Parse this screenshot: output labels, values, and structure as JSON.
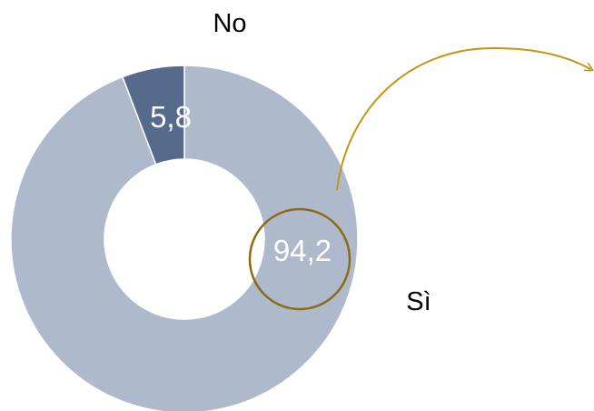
{
  "chart_data": {
    "type": "pie",
    "variant": "donut",
    "categories": [
      "Sì",
      "No"
    ],
    "values": [
      94.2,
      5.8
    ],
    "data_labels": [
      "94,2",
      "5,8"
    ],
    "colors": [
      "#aeb9cb",
      "#566a8c"
    ],
    "title": "",
    "legend": "none",
    "annotations": {
      "highlight_circle_color": "#8e6a14",
      "arrow_color": "#c49414",
      "highlight_target": "94,2"
    }
  }
}
